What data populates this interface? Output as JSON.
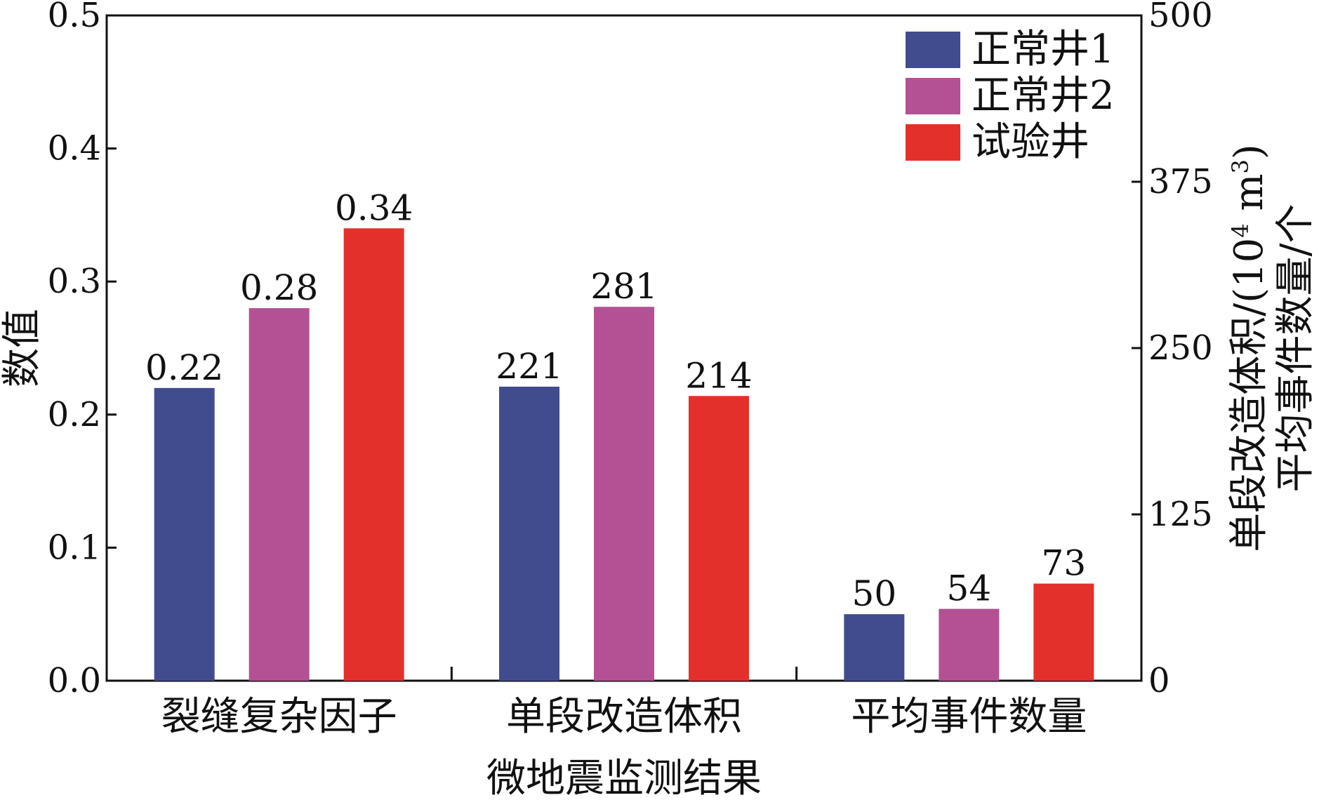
{
  "chart_data": {
    "type": "bar",
    "categories": [
      "裂缝复杂因子",
      "单段改造体积",
      "平均事件数量"
    ],
    "series": [
      {
        "name": "正常井1",
        "color": "#414c8f",
        "values": [
          0.22,
          221,
          50
        ]
      },
      {
        "name": "正常井2",
        "color": "#b35194",
        "values": [
          0.28,
          281,
          54
        ]
      },
      {
        "name": "试验井",
        "color": "#e3302a",
        "values": [
          0.34,
          214,
          73
        ]
      }
    ],
    "data_labels": [
      [
        "0.22",
        "221",
        "50"
      ],
      [
        "0.28",
        "281",
        "54"
      ],
      [
        "0.34",
        "214",
        "73"
      ]
    ],
    "category_axis": [
      "left",
      "right",
      "right"
    ],
    "xlabel": "微地震监测结果",
    "ylabel_left": "数值",
    "ylabel_right_line1": "单段改造体积/(10",
    "ylabel_right_sup1": "4",
    "ylabel_right_mid": " m",
    "ylabel_right_sup2": "3",
    "ylabel_right_end": ")",
    "ylabel_right_line2": "平均事件数量/个",
    "ylim_left": [
      0,
      0.5
    ],
    "ylim_right": [
      0,
      500
    ],
    "yticks_left": [
      "0.0",
      "0.1",
      "0.2",
      "0.3",
      "0.4",
      "0.5"
    ],
    "yticks_right": [
      "0",
      "125",
      "250",
      "375",
      "500"
    ],
    "legend_position": "top-right",
    "grid": false
  }
}
